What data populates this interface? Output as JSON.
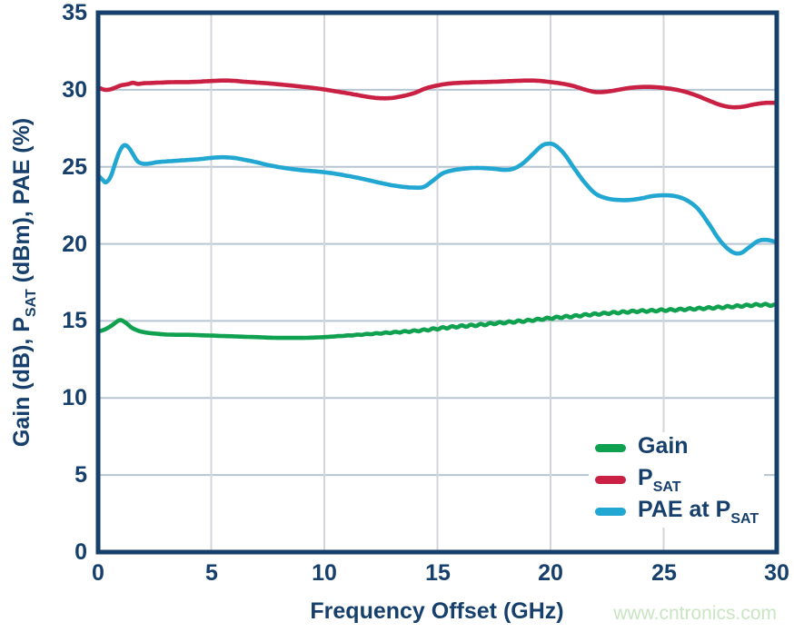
{
  "figure": {
    "watermark": "www.cntronics.com",
    "colors": {
      "axis": "#16406b",
      "text": "#16406b",
      "grid_horizontal": "#b7c5d2",
      "grid_vertical": "#d2d6da",
      "watermark": "#c9e5c2",
      "gain_green": "#10a150",
      "psat_red": "#c92043",
      "pae_blue": "#21a7d2"
    },
    "x_axis": {
      "title": "Frequency Offset (GHz)",
      "ticks": [
        0,
        5,
        10,
        15,
        20,
        25,
        30
      ]
    },
    "y_axis": {
      "title_pre": "Gain (dB), P",
      "title_sub": "SAT",
      "title_post": " (dBm), PAE (%)",
      "ticks": [
        0,
        5,
        10,
        15,
        20,
        25,
        30,
        35
      ]
    },
    "legend": [
      {
        "label_pre": "Gain",
        "label_sub": "",
        "color": "#10a150"
      },
      {
        "label_pre": "P",
        "label_sub": "SAT",
        "color": "#c92043"
      },
      {
        "label_pre": "PAE at P",
        "label_sub": "SAT",
        "color": "#21a7d2"
      }
    ]
  },
  "chart_data": {
    "type": "line",
    "title": "",
    "xlabel": "Frequency Offset (GHz)",
    "ylabel": "Gain (dB), PSAT (dBm), PAE (%)",
    "xlim": [
      0,
      30
    ],
    "ylim": [
      0,
      35
    ],
    "x_gridlines": [
      5,
      10,
      15,
      20,
      25
    ],
    "y_gridlines": [
      5,
      10,
      15,
      20,
      25,
      30
    ],
    "grid": true,
    "legend_position": "lower right",
    "series": [
      {
        "id": "gain",
        "name": "Gain",
        "color": "#10a150",
        "ripple": {
          "start": 10,
          "amplitude": 0.06,
          "period": 0.42
        },
        "points": [
          [
            0,
            14.3
          ],
          [
            0.3,
            14.45
          ],
          [
            0.6,
            14.7
          ],
          [
            0.95,
            15.05
          ],
          [
            1.2,
            14.9
          ],
          [
            1.5,
            14.55
          ],
          [
            1.8,
            14.35
          ],
          [
            2.1,
            14.25
          ],
          [
            2.5,
            14.18
          ],
          [
            3,
            14.12
          ],
          [
            3.5,
            14.1
          ],
          [
            4,
            14.1
          ],
          [
            4.5,
            14.07
          ],
          [
            5,
            14.05
          ],
          [
            5.5,
            14.02
          ],
          [
            6,
            14.0
          ],
          [
            6.5,
            13.97
          ],
          [
            7,
            13.95
          ],
          [
            7.5,
            13.92
          ],
          [
            8,
            13.9
          ],
          [
            8.5,
            13.9
          ],
          [
            9,
            13.9
          ],
          [
            9.5,
            13.92
          ],
          [
            10,
            13.95
          ],
          [
            10.5,
            14.0
          ],
          [
            11,
            14.05
          ],
          [
            11.5,
            14.1
          ],
          [
            12,
            14.15
          ],
          [
            12.5,
            14.2
          ],
          [
            13,
            14.25
          ],
          [
            13.5,
            14.3
          ],
          [
            14,
            14.35
          ],
          [
            14.5,
            14.42
          ],
          [
            15,
            14.5
          ],
          [
            15.5,
            14.58
          ],
          [
            16,
            14.65
          ],
          [
            16.5,
            14.7
          ],
          [
            17,
            14.76
          ],
          [
            17.5,
            14.84
          ],
          [
            18,
            14.9
          ],
          [
            18.5,
            14.96
          ],
          [
            19,
            15.02
          ],
          [
            19.5,
            15.1
          ],
          [
            20,
            15.18
          ],
          [
            20.5,
            15.25
          ],
          [
            21,
            15.3
          ],
          [
            21.5,
            15.38
          ],
          [
            22,
            15.44
          ],
          [
            22.5,
            15.5
          ],
          [
            23,
            15.55
          ],
          [
            23.5,
            15.6
          ],
          [
            24,
            15.64
          ],
          [
            24.5,
            15.66
          ],
          [
            25,
            15.7
          ],
          [
            25.5,
            15.72
          ],
          [
            26,
            15.76
          ],
          [
            26.5,
            15.8
          ],
          [
            27,
            15.84
          ],
          [
            27.5,
            15.88
          ],
          [
            28,
            15.93
          ],
          [
            28.5,
            15.98
          ],
          [
            29,
            16.03
          ],
          [
            29.5,
            16.05
          ],
          [
            30,
            16.0
          ]
        ]
      },
      {
        "id": "psat",
        "name": "PSAT",
        "color": "#c92043",
        "points": [
          [
            0,
            30.15
          ],
          [
            0.3,
            30.0
          ],
          [
            0.6,
            30.05
          ],
          [
            1,
            30.28
          ],
          [
            1.3,
            30.36
          ],
          [
            1.55,
            30.45
          ],
          [
            1.75,
            30.38
          ],
          [
            2,
            30.42
          ],
          [
            2.5,
            30.45
          ],
          [
            3,
            30.48
          ],
          [
            3.5,
            30.5
          ],
          [
            4,
            30.5
          ],
          [
            4.5,
            30.53
          ],
          [
            5,
            30.57
          ],
          [
            5.5,
            30.6
          ],
          [
            6,
            30.58
          ],
          [
            6.5,
            30.52
          ],
          [
            7,
            30.47
          ],
          [
            7.5,
            30.42
          ],
          [
            8,
            30.35
          ],
          [
            8.5,
            30.28
          ],
          [
            9,
            30.2
          ],
          [
            9.5,
            30.12
          ],
          [
            10,
            30.02
          ],
          [
            10.5,
            29.9
          ],
          [
            11,
            29.78
          ],
          [
            11.5,
            29.65
          ],
          [
            12,
            29.52
          ],
          [
            12.5,
            29.45
          ],
          [
            13,
            29.47
          ],
          [
            13.5,
            29.6
          ],
          [
            14,
            29.8
          ],
          [
            14.5,
            30.1
          ],
          [
            15,
            30.28
          ],
          [
            15.5,
            30.4
          ],
          [
            16,
            30.45
          ],
          [
            16.5,
            30.48
          ],
          [
            17,
            30.5
          ],
          [
            17.5,
            30.52
          ],
          [
            18,
            30.55
          ],
          [
            18.5,
            30.58
          ],
          [
            19,
            30.6
          ],
          [
            19.5,
            30.58
          ],
          [
            20,
            30.5
          ],
          [
            20.5,
            30.4
          ],
          [
            21,
            30.25
          ],
          [
            21.5,
            30.02
          ],
          [
            22,
            29.85
          ],
          [
            22.5,
            29.88
          ],
          [
            23,
            30.0
          ],
          [
            23.5,
            30.12
          ],
          [
            24,
            30.18
          ],
          [
            24.5,
            30.18
          ],
          [
            25,
            30.12
          ],
          [
            25.5,
            30.02
          ],
          [
            26,
            29.85
          ],
          [
            26.5,
            29.6
          ],
          [
            27,
            29.3
          ],
          [
            27.5,
            29.02
          ],
          [
            28,
            28.87
          ],
          [
            28.5,
            28.9
          ],
          [
            29,
            29.05
          ],
          [
            29.5,
            29.15
          ],
          [
            30,
            29.15
          ]
        ]
      },
      {
        "id": "pae",
        "name": "PAE at PSAT",
        "color": "#21a7d2",
        "points": [
          [
            0,
            24.45
          ],
          [
            0.2,
            24.15
          ],
          [
            0.35,
            24.0
          ],
          [
            0.55,
            24.35
          ],
          [
            0.75,
            25.2
          ],
          [
            0.95,
            26.0
          ],
          [
            1.15,
            26.4
          ],
          [
            1.35,
            26.25
          ],
          [
            1.55,
            25.8
          ],
          [
            1.75,
            25.35
          ],
          [
            2,
            25.2
          ],
          [
            2.3,
            25.22
          ],
          [
            2.6,
            25.3
          ],
          [
            3,
            25.35
          ],
          [
            3.5,
            25.4
          ],
          [
            4,
            25.45
          ],
          [
            4.5,
            25.5
          ],
          [
            5,
            25.58
          ],
          [
            5.5,
            25.62
          ],
          [
            6,
            25.58
          ],
          [
            6.5,
            25.45
          ],
          [
            7,
            25.3
          ],
          [
            7.5,
            25.12
          ],
          [
            8,
            24.98
          ],
          [
            8.5,
            24.87
          ],
          [
            9,
            24.78
          ],
          [
            9.5,
            24.72
          ],
          [
            10,
            24.65
          ],
          [
            10.5,
            24.55
          ],
          [
            11,
            24.42
          ],
          [
            11.5,
            24.28
          ],
          [
            12,
            24.12
          ],
          [
            12.5,
            23.95
          ],
          [
            13,
            23.8
          ],
          [
            13.5,
            23.7
          ],
          [
            14,
            23.65
          ],
          [
            14.4,
            23.7
          ],
          [
            14.8,
            24.1
          ],
          [
            15.2,
            24.55
          ],
          [
            15.6,
            24.75
          ],
          [
            16,
            24.85
          ],
          [
            16.5,
            24.92
          ],
          [
            17,
            24.92
          ],
          [
            17.5,
            24.87
          ],
          [
            18,
            24.8
          ],
          [
            18.4,
            24.9
          ],
          [
            18.8,
            25.25
          ],
          [
            19.2,
            25.8
          ],
          [
            19.6,
            26.35
          ],
          [
            19.9,
            26.5
          ],
          [
            20.2,
            26.4
          ],
          [
            20.6,
            25.85
          ],
          [
            21,
            25.0
          ],
          [
            21.5,
            24.0
          ],
          [
            22,
            23.25
          ],
          [
            22.5,
            22.95
          ],
          [
            23,
            22.85
          ],
          [
            23.5,
            22.85
          ],
          [
            24,
            22.95
          ],
          [
            24.5,
            23.1
          ],
          [
            25,
            23.15
          ],
          [
            25.5,
            23.1
          ],
          [
            26,
            22.85
          ],
          [
            26.5,
            22.3
          ],
          [
            27,
            21.3
          ],
          [
            27.5,
            20.2
          ],
          [
            28,
            19.5
          ],
          [
            28.4,
            19.4
          ],
          [
            28.8,
            19.8
          ],
          [
            29.2,
            20.2
          ],
          [
            29.6,
            20.25
          ],
          [
            30,
            20.1
          ]
        ]
      }
    ]
  }
}
